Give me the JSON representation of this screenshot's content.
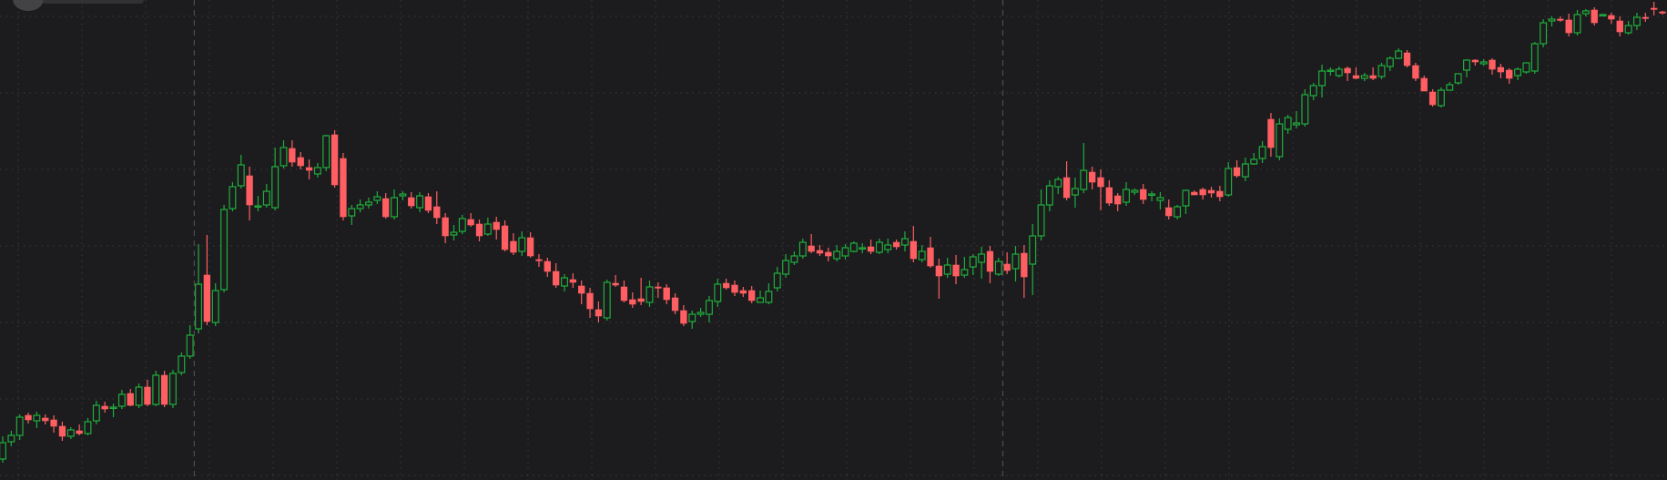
{
  "theme": {
    "background": "#1c1c1e",
    "grid_color": "#3a3a3c",
    "session_line_color": "#4d4d4f",
    "up_color": "#1fae3c",
    "down_color": "#ff5e62"
  },
  "chart_data": {
    "type": "candlestick",
    "grid": true,
    "ylim": [
      0,
      527
    ],
    "sessions": [
      {
        "start_index": 0,
        "end_index": 22
      },
      {
        "start_index": 23,
        "end_index": 117
      },
      {
        "start_index": 118,
        "end_index": 189
      }
    ],
    "candles": [
      [
        504,
        486,
        479,
        508
      ],
      [
        485,
        478,
        473,
        490
      ],
      [
        478,
        458,
        455,
        483
      ],
      [
        456,
        461,
        453,
        465
      ],
      [
        462,
        456,
        452,
        470
      ],
      [
        459,
        462,
        455,
        466
      ],
      [
        461,
        468,
        456,
        475
      ],
      [
        468,
        479,
        463,
        484
      ],
      [
        479,
        472,
        469,
        482
      ],
      [
        473,
        476,
        466,
        478
      ],
      [
        476,
        463,
        459,
        478
      ],
      [
        462,
        445,
        440,
        466
      ],
      [
        446,
        449,
        441,
        453
      ],
      [
        448,
        447,
        443,
        458
      ],
      [
        446,
        433,
        428,
        449
      ],
      [
        432,
        445,
        427,
        446
      ],
      [
        445,
        425,
        421,
        448
      ],
      [
        425,
        444,
        417,
        446
      ],
      [
        444,
        412,
        407,
        446
      ],
      [
        412,
        444,
        407,
        447
      ],
      [
        444,
        410,
        406,
        448
      ],
      [
        409,
        391,
        387,
        412
      ],
      [
        391,
        368,
        357,
        394
      ],
      [
        361,
        312,
        268,
        366
      ],
      [
        302,
        353,
        258,
        357
      ],
      [
        354,
        319,
        311,
        358
      ],
      [
        318,
        230,
        225,
        321
      ],
      [
        229,
        205,
        200,
        232
      ],
      [
        204,
        181,
        170,
        207
      ],
      [
        193,
        225,
        183,
        242
      ],
      [
        227,
        226,
        215,
        232
      ],
      [
        225,
        210,
        202,
        228
      ],
      [
        228,
        183,
        162,
        231
      ],
      [
        182,
        162,
        154,
        185
      ],
      [
        163,
        178,
        154,
        183
      ],
      [
        173,
        182,
        167,
        186
      ],
      [
        184,
        187,
        175,
        197
      ],
      [
        191,
        184,
        179,
        195
      ],
      [
        184,
        149,
        148,
        188
      ],
      [
        148,
        203,
        143,
        206
      ],
      [
        174,
        238,
        168,
        242
      ],
      [
        237,
        229,
        225,
        247
      ],
      [
        229,
        225,
        219,
        233
      ],
      [
        225,
        222,
        217,
        229
      ],
      [
        220,
        216,
        210,
        224
      ],
      [
        218,
        238,
        212,
        240
      ],
      [
        238,
        217,
        208,
        241
      ],
      [
        215,
        213,
        210,
        220
      ],
      [
        217,
        226,
        211,
        229
      ],
      [
        228,
        215,
        211,
        233
      ],
      [
        216,
        231,
        212,
        234
      ],
      [
        227,
        239,
        210,
        246
      ],
      [
        239,
        259,
        234,
        267
      ],
      [
        258,
        255,
        247,
        264
      ],
      [
        254,
        240,
        236,
        257
      ],
      [
        241,
        247,
        234,
        249
      ],
      [
        246,
        259,
        241,
        265
      ],
      [
        257,
        246,
        239,
        259
      ],
      [
        244,
        252,
        238,
        263
      ],
      [
        248,
        274,
        242,
        276
      ],
      [
        265,
        277,
        256,
        280
      ],
      [
        276,
        261,
        254,
        281
      ],
      [
        261,
        281,
        255,
        283
      ],
      [
        285,
        286,
        279,
        293
      ],
      [
        287,
        298,
        283,
        304
      ],
      [
        298,
        313,
        289,
        316
      ],
      [
        314,
        305,
        301,
        320
      ],
      [
        307,
        310,
        300,
        316
      ],
      [
        314,
        322,
        308,
        334
      ],
      [
        322,
        339,
        316,
        349
      ],
      [
        340,
        347,
        331,
        354
      ],
      [
        349,
        310,
        307,
        352
      ],
      [
        311,
        313,
        302,
        315
      ],
      [
        315,
        330,
        308,
        332
      ],
      [
        329,
        334,
        321,
        338
      ],
      [
        328,
        331,
        305,
        335
      ],
      [
        332,
        315,
        308,
        337
      ],
      [
        315,
        316,
        310,
        327
      ],
      [
        316,
        329,
        312,
        334
      ],
      [
        327,
        341,
        322,
        345
      ],
      [
        341,
        355,
        335,
        358
      ],
      [
        353,
        345,
        341,
        361
      ],
      [
        345,
        343,
        338,
        348
      ],
      [
        345,
        330,
        325,
        354
      ],
      [
        331,
        312,
        306,
        337
      ],
      [
        311,
        316,
        306,
        318
      ],
      [
        313,
        321,
        308,
        325
      ],
      [
        319,
        322,
        315,
        326
      ],
      [
        319,
        330,
        314,
        333
      ],
      [
        332,
        327,
        319,
        332
      ],
      [
        332,
        320,
        311,
        334
      ],
      [
        316,
        300,
        293,
        320
      ],
      [
        301,
        286,
        279,
        305
      ],
      [
        288,
        281,
        276,
        291
      ],
      [
        281,
        266,
        262,
        284
      ],
      [
        270,
        276,
        257,
        278
      ],
      [
        275,
        278,
        269,
        281
      ],
      [
        277,
        281,
        272,
        287
      ],
      [
        284,
        276,
        269,
        287
      ],
      [
        281,
        272,
        268,
        285
      ],
      [
        276,
        267,
        265,
        277
      ],
      [
        273,
        272,
        267,
        278
      ],
      [
        271,
        276,
        263,
        279
      ],
      [
        277,
        266,
        262,
        279
      ],
      [
        274,
        269,
        262,
        278
      ],
      [
        266,
        271,
        263,
        274
      ],
      [
        269,
        262,
        254,
        276
      ],
      [
        265,
        284,
        248,
        288
      ],
      [
        285,
        276,
        269,
        288
      ],
      [
        272,
        292,
        260,
        294
      ],
      [
        292,
        303,
        284,
        328
      ],
      [
        301,
        291,
        283,
        305
      ],
      [
        291,
        303,
        280,
        312
      ],
      [
        302,
        296,
        282,
        305
      ],
      [
        293,
        282,
        279,
        302
      ],
      [
        288,
        279,
        271,
        306
      ],
      [
        276,
        298,
        270,
        311
      ],
      [
        301,
        287,
        283,
        303
      ],
      [
        290,
        297,
        277,
        301
      ],
      [
        295,
        279,
        270,
        309
      ],
      [
        278,
        304,
        269,
        327
      ],
      [
        290,
        259,
        246,
        324
      ],
      [
        259,
        225,
        208,
        264
      ],
      [
        225,
        204,
        198,
        232
      ],
      [
        205,
        197,
        194,
        213
      ],
      [
        195,
        217,
        177,
        220
      ],
      [
        214,
        207,
        195,
        228
      ],
      [
        208,
        187,
        157,
        212
      ],
      [
        189,
        200,
        183,
        208
      ],
      [
        195,
        205,
        186,
        231
      ],
      [
        206,
        223,
        198,
        226
      ],
      [
        215,
        224,
        212,
        232
      ],
      [
        222,
        208,
        200,
        226
      ],
      [
        211,
        209,
        207,
        214
      ],
      [
        208,
        219,
        202,
        224
      ],
      [
        213,
        213,
        210,
        221
      ],
      [
        220,
        217,
        211,
        230
      ],
      [
        228,
        237,
        219,
        241
      ],
      [
        238,
        227,
        225,
        241
      ],
      [
        226,
        209,
        208,
        235
      ],
      [
        211,
        214,
        209,
        213
      ],
      [
        208,
        214,
        206,
        219
      ],
      [
        209,
        212,
        205,
        217
      ],
      [
        210,
        216,
        204,
        221
      ],
      [
        214,
        185,
        178,
        216
      ],
      [
        184,
        193,
        176,
        195
      ],
      [
        194,
        180,
        173,
        199
      ],
      [
        180,
        175,
        168,
        181
      ],
      [
        174,
        161,
        155,
        179
      ],
      [
        131,
        162,
        124,
        172
      ],
      [
        172,
        136,
        130,
        176
      ],
      [
        142,
        129,
        126,
        147
      ],
      [
        137,
        135,
        122,
        141
      ],
      [
        136,
        104,
        98,
        139
      ],
      [
        105,
        94,
        91,
        110
      ],
      [
        94,
        78,
        71,
        107
      ],
      [
        77,
        77,
        74,
        83
      ],
      [
        83,
        76,
        73,
        85
      ],
      [
        75,
        80,
        73,
        89
      ],
      [
        83,
        86,
        74,
        87
      ],
      [
        86,
        83,
        80,
        89
      ],
      [
        83,
        86,
        74,
        88
      ],
      [
        84,
        72,
        69,
        87
      ],
      [
        73,
        64,
        62,
        78
      ],
      [
        64,
        56,
        53,
        65
      ],
      [
        58,
        72,
        55,
        74
      ],
      [
        72,
        86,
        69,
        89
      ],
      [
        86,
        100,
        83,
        99
      ],
      [
        101,
        115,
        98,
        117
      ],
      [
        116,
        99,
        96,
        118
      ],
      [
        99,
        93,
        90,
        98
      ],
      [
        91,
        81,
        81,
        93
      ],
      [
        77,
        66,
        65,
        85
      ],
      [
        66,
        68,
        65,
        72
      ],
      [
        70,
        68,
        65,
        72
      ],
      [
        66,
        76,
        64,
        82
      ],
      [
        74,
        79,
        70,
        86
      ],
      [
        77,
        86,
        75,
        92
      ],
      [
        83,
        76,
        74,
        88
      ],
      [
        79,
        69,
        70,
        81
      ],
      [
        78,
        48,
        46,
        81
      ],
      [
        48,
        25,
        21,
        52
      ],
      [
        23,
        21,
        18,
        29
      ],
      [
        21,
        22,
        18,
        24
      ],
      [
        22,
        36,
        15,
        40
      ],
      [
        36,
        16,
        11,
        39
      ],
      [
        15,
        12,
        10,
        18
      ],
      [
        11,
        25,
        8,
        28
      ],
      [
        16,
        16,
        15,
        17
      ],
      [
        17,
        21,
        14,
        26
      ],
      [
        23,
        35,
        18,
        40
      ],
      [
        36,
        28,
        23,
        38
      ],
      [
        28,
        19,
        14,
        33
      ],
      [
        19,
        20,
        14,
        24
      ],
      [
        9,
        10,
        2,
        17
      ],
      [
        13,
        14,
        12,
        16
      ]
    ]
  }
}
